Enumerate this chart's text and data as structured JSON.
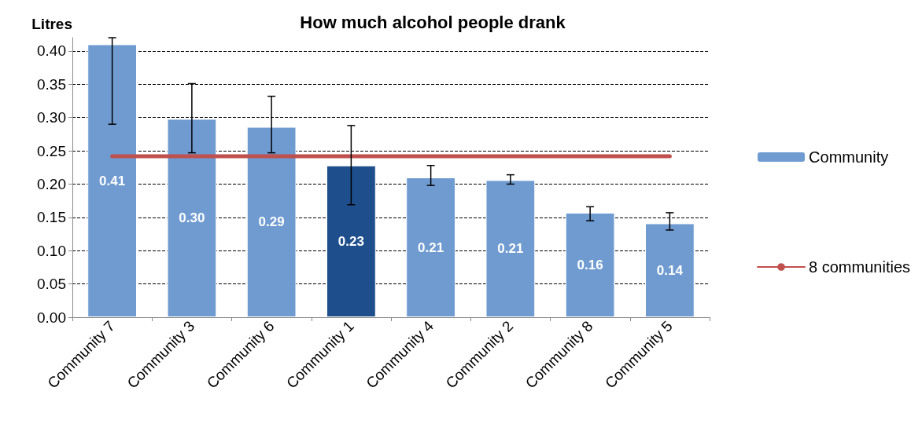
{
  "chart_data": {
    "type": "bar",
    "title": "How much alcohol people drank",
    "ylabel": "Litres",
    "categories": [
      "Community 7",
      "Community 3",
      "Community 6",
      "Community 1",
      "Community 4",
      "Community 2",
      "Community 8",
      "Community 5"
    ],
    "series": [
      {
        "name": "Community",
        "colors": [
          "#6f9bd1",
          "#6f9bd1",
          "#6f9bd1",
          "#1f4e8c",
          "#6f9bd1",
          "#6f9bd1",
          "#6f9bd1",
          "#6f9bd1"
        ],
        "values": [
          0.41,
          0.298,
          0.286,
          0.228,
          0.21,
          0.206,
          0.157,
          0.141
        ],
        "value_labels": [
          "0.41",
          "0.30",
          "0.29",
          "0.23",
          "0.21",
          "0.21",
          "0.16",
          "0.14"
        ],
        "errors": [
          [
            0.29,
            0.42
          ],
          [
            0.247,
            0.351
          ],
          [
            0.247,
            0.332
          ],
          [
            0.169,
            0.288
          ],
          [
            0.198,
            0.228
          ],
          [
            0.2,
            0.214
          ],
          [
            0.145,
            0.166
          ],
          [
            0.131,
            0.157
          ]
        ]
      },
      {
        "name": "8 communities",
        "type": "line",
        "color": "#c0504d",
        "values": [
          0.242,
          0.242,
          0.242,
          0.242,
          0.242,
          0.242,
          0.242,
          0.242
        ]
      }
    ],
    "ylim": [
      0,
      0.42
    ],
    "yticks": [
      {
        "value": 0,
        "label": "0.00"
      },
      {
        "value": 0.05,
        "label": "0.05"
      },
      {
        "value": 0.1,
        "label": "0.10"
      },
      {
        "value": 0.15,
        "label": "0.15"
      },
      {
        "value": 0.2,
        "label": "0.20"
      },
      {
        "value": 0.25,
        "label": "0.25"
      },
      {
        "value": 0.3,
        "label": "0.30"
      },
      {
        "value": 0.35,
        "label": "0.35"
      },
      {
        "value": 0.4,
        "label": "0.40"
      }
    ],
    "grid": "y",
    "legend": "right",
    "marker": "none",
    "line_style": "solid"
  }
}
